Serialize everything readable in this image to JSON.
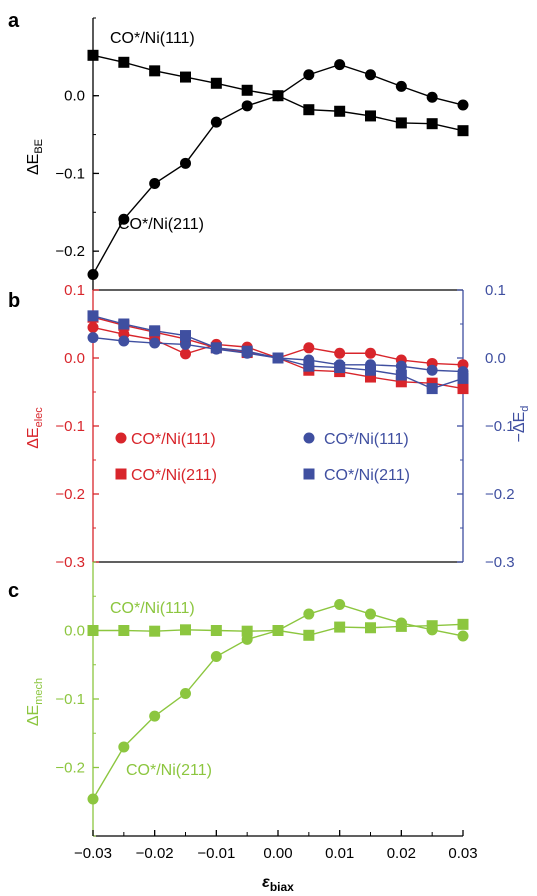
{
  "figure": {
    "xlabel": "ε",
    "xlabel_sub": "biax",
    "xticks": [
      "−0.03",
      "−0.02",
      "−0.01",
      "0.00",
      "0.01",
      "0.02",
      "0.03"
    ],
    "colors": {
      "black": "#000000",
      "red": "#d8252b",
      "blue": "#3f4fa0",
      "green": "#8cc63f"
    }
  },
  "chart_data": [
    {
      "type": "line",
      "panel": "a",
      "panel_label": "a",
      "ylabel": "ΔE",
      "ylabel_sub": "BE",
      "xlim": [
        -0.03,
        0.03
      ],
      "ylim": [
        -0.25,
        0.1
      ],
      "yticks": [
        "0.0",
        "−0.1",
        "−0.2"
      ],
      "ytick_values": [
        0,
        -0.1,
        -0.2
      ],
      "x": [
        -0.03,
        -0.025,
        -0.02,
        -0.015,
        -0.01,
        -0.005,
        0,
        0.005,
        0.01,
        0.015,
        0.02,
        0.025,
        0.03
      ],
      "series": [
        {
          "name": "CO*/Ni(111)",
          "marker": "square",
          "color": "#000000",
          "values": [
            0.052,
            0.043,
            0.032,
            0.024,
            0.016,
            0.007,
            0.0,
            -0.018,
            -0.02,
            -0.026,
            -0.035,
            -0.036,
            -0.045
          ]
        },
        {
          "name": "CO*/Ni(211)",
          "marker": "circle",
          "color": "#000000",
          "values": [
            -0.23,
            -0.159,
            -0.113,
            -0.087,
            -0.034,
            -0.013,
            0.0,
            0.027,
            0.04,
            0.027,
            0.012,
            -0.002,
            -0.012
          ]
        }
      ]
    },
    {
      "type": "line",
      "panel": "b",
      "panel_label": "b",
      "ylabel": "ΔE",
      "ylabel_sub": "elec",
      "ylabel_right": "−ΔE",
      "ylabel_right_sub": "d",
      "xlim": [
        -0.03,
        0.03
      ],
      "ylim": [
        -0.3,
        0.1
      ],
      "yticks": [
        "0.1",
        "0.0",
        "−0.1",
        "−0.2",
        "−0.3"
      ],
      "ytick_values": [
        0.1,
        0,
        -0.1,
        -0.2,
        -0.3
      ],
      "x": [
        -0.03,
        -0.025,
        -0.02,
        -0.015,
        -0.01,
        -0.005,
        0,
        0.005,
        0.01,
        0.015,
        0.02,
        0.025,
        0.03
      ],
      "series": [
        {
          "name": "CO*/Ni(111)",
          "axis": "left",
          "marker": "circle",
          "color": "#d8252b",
          "values": [
            0.045,
            0.035,
            0.027,
            0.006,
            0.02,
            0.016,
            0.0,
            0.015,
            0.007,
            0.007,
            -0.003,
            -0.008,
            -0.01
          ]
        },
        {
          "name": "CO*/Ni(211)",
          "axis": "left",
          "marker": "square",
          "color": "#d8252b",
          "values": [
            0.06,
            0.048,
            0.038,
            0.028,
            0.015,
            0.008,
            0.0,
            -0.018,
            -0.02,
            -0.028,
            -0.035,
            -0.037,
            -0.045
          ]
        },
        {
          "name": "CO*/Ni(111)",
          "axis": "right",
          "marker": "circle",
          "color": "#3f4fa0",
          "values": [
            0.03,
            0.025,
            0.022,
            0.02,
            0.013,
            0.007,
            0.0,
            -0.003,
            -0.01,
            -0.01,
            -0.012,
            -0.018,
            -0.02
          ]
        },
        {
          "name": "CO*/Ni(211)",
          "axis": "right",
          "marker": "square",
          "color": "#3f4fa0",
          "values": [
            0.062,
            0.05,
            0.04,
            0.033,
            0.015,
            0.01,
            0.0,
            -0.012,
            -0.014,
            -0.018,
            -0.025,
            -0.045,
            -0.03
          ]
        }
      ],
      "right_axis": {
        "ylim": [
          -0.3,
          0.1
        ],
        "yticks": [
          "0.1",
          "0.0",
          "−0.1",
          "−0.2",
          "−0.3"
        ],
        "ytick_values": [
          0.1,
          0,
          -0.1,
          -0.2,
          -0.3
        ]
      },
      "legend": {
        "placement": "middle",
        "entries": [
          {
            "label": "CO*/Ni(111)",
            "marker": "circle",
            "color": "#d8252b"
          },
          {
            "label": "CO*/Ni(211)",
            "marker": "square",
            "color": "#d8252b"
          },
          {
            "label": "CO*/Ni(111)",
            "marker": "circle",
            "color": "#3f4fa0"
          },
          {
            "label": "CO*/Ni(211)",
            "marker": "square",
            "color": "#3f4fa0"
          }
        ]
      }
    },
    {
      "type": "line",
      "panel": "c",
      "panel_label": "c",
      "ylabel": "ΔE",
      "ylabel_sub": "mech",
      "xlim": [
        -0.03,
        0.03
      ],
      "ylim": [
        -0.3,
        0.1
      ],
      "yticks": [
        "0.0",
        "−0.1",
        "−0.2"
      ],
      "ytick_values": [
        0,
        -0.1,
        -0.2
      ],
      "x": [
        -0.03,
        -0.025,
        -0.02,
        -0.015,
        -0.01,
        -0.005,
        0,
        0.005,
        0.01,
        0.015,
        0.02,
        0.025,
        0.03
      ],
      "series": [
        {
          "name": "CO*/Ni(111)",
          "marker": "square",
          "color": "#8cc63f",
          "values": [
            0.0,
            0.0,
            -0.001,
            0.001,
            0.0,
            -0.001,
            0.0,
            -0.007,
            0.005,
            0.004,
            0.006,
            0.007,
            0.009
          ]
        },
        {
          "name": "CO*/Ni(211)",
          "marker": "circle",
          "color": "#8cc63f",
          "values": [
            -0.246,
            -0.17,
            -0.125,
            -0.092,
            -0.038,
            -0.013,
            0.0,
            0.024,
            0.038,
            0.024,
            0.011,
            0.001,
            -0.008
          ]
        }
      ]
    }
  ]
}
